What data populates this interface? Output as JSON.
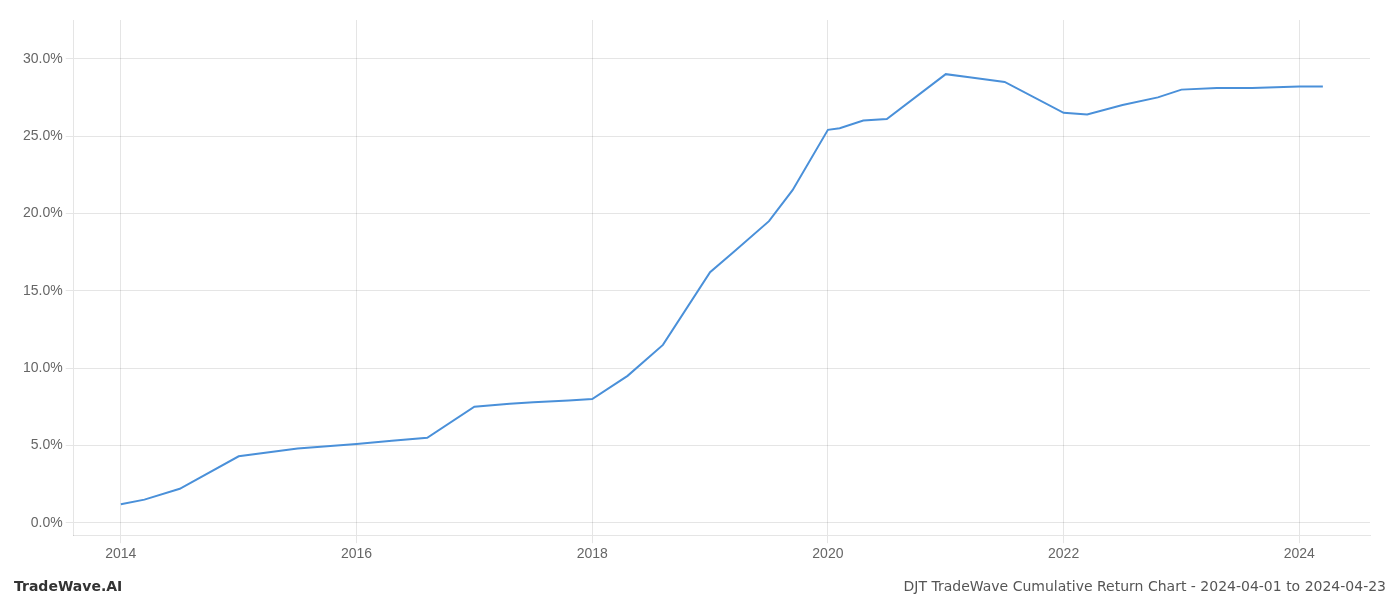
{
  "chart_data": {
    "type": "line",
    "x": [
      2014.0,
      2014.2,
      2014.5,
      2015.0,
      2015.5,
      2016.0,
      2016.3,
      2016.6,
      2017.0,
      2017.3,
      2017.5,
      2017.8,
      2018.0,
      2018.3,
      2018.6,
      2019.0,
      2019.2,
      2019.5,
      2019.7,
      2020.0,
      2020.1,
      2020.3,
      2020.5,
      2021.0,
      2021.2,
      2021.5,
      2022.0,
      2022.2,
      2022.5,
      2022.8,
      2023.0,
      2023.3,
      2023.6,
      2024.0,
      2024.2
    ],
    "values": [
      1.2,
      1.5,
      2.2,
      4.3,
      4.8,
      5.1,
      5.3,
      5.5,
      7.5,
      7.7,
      7.8,
      7.9,
      8.0,
      9.5,
      11.5,
      16.2,
      17.5,
      19.5,
      21.5,
      25.4,
      25.5,
      26.0,
      26.1,
      29.0,
      28.8,
      28.5,
      26.5,
      26.4,
      27.0,
      27.5,
      28.0,
      28.1,
      28.1,
      28.2,
      28.2
    ],
    "color": "#4a90d9",
    "xlim": [
      2013.6,
      2024.6
    ],
    "xticks": [
      2014,
      2016,
      2018,
      2020,
      2022,
      2024
    ],
    "ylim": [
      -0.8,
      32.5
    ],
    "yticks": [
      {
        "value": 0.0,
        "label": "0.0%"
      },
      {
        "value": 5.0,
        "label": "5.0%"
      },
      {
        "value": 10.0,
        "label": "10.0%"
      },
      {
        "value": 15.0,
        "label": "15.0%"
      },
      {
        "value": 20.0,
        "label": "20.0%"
      },
      {
        "value": 25.0,
        "label": "25.0%"
      },
      {
        "value": 30.0,
        "label": "30.0%"
      }
    ],
    "grid": true,
    "annotations": [
      "TradeWave.AI",
      "DJT TradeWave Cumulative Return Chart - 2024-04-01 to 2024-04-23"
    ]
  }
}
